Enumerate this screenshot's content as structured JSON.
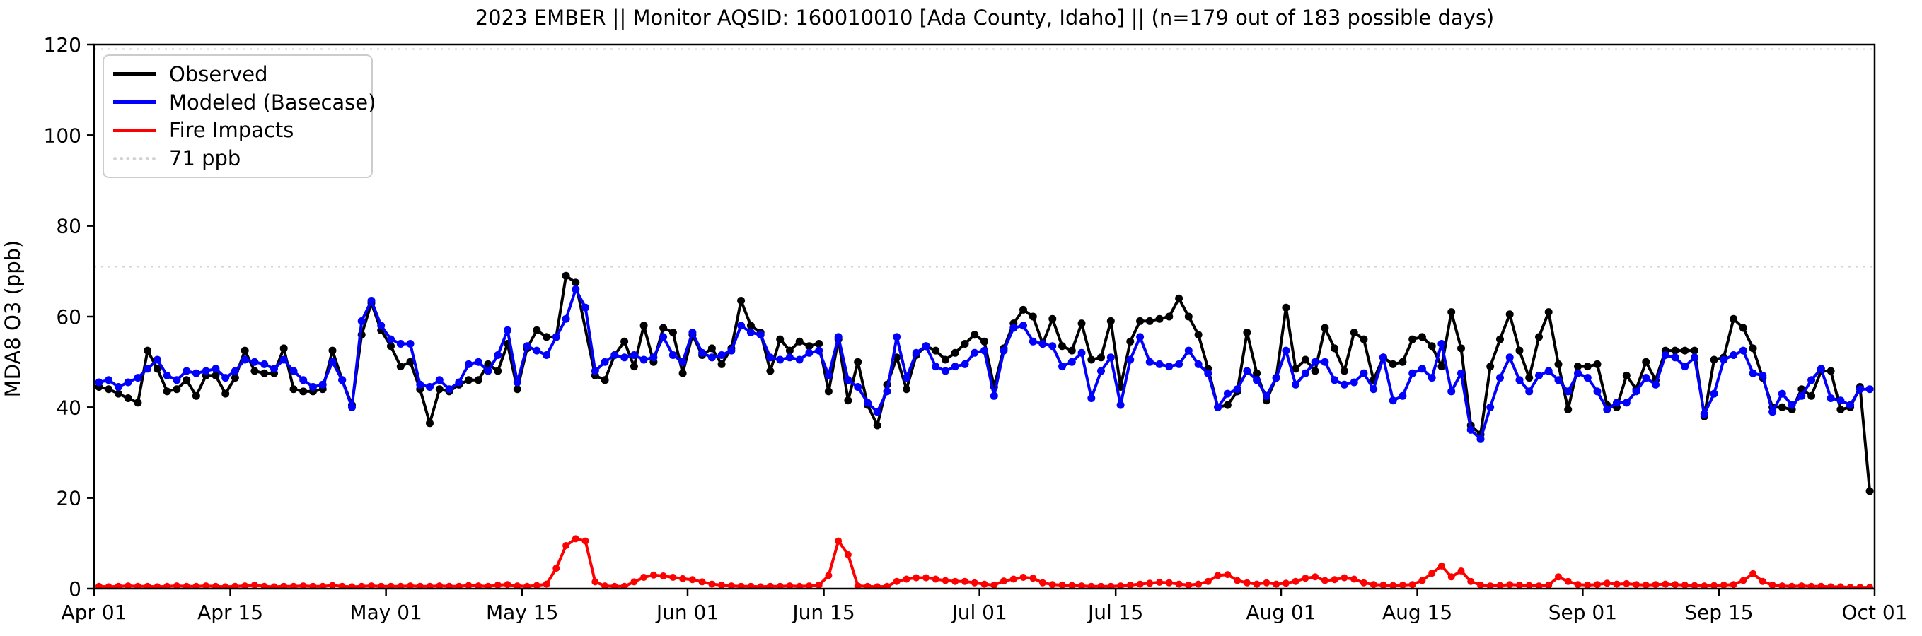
{
  "figure": {
    "title": "2023 EMBER || Monitor AQSID: 160010010 [Ada County, Idaho] || (n=179 out of 183 possible days)",
    "ylabel": "MDA8 O3 (ppb)"
  },
  "colors": {
    "observed": "#000000",
    "modeled": "#0000ff",
    "fire": "#ff0000",
    "reference": "#d3d3d3",
    "spine": "#000000",
    "background": "#ffffff"
  },
  "legend": {
    "items": [
      {
        "label": "Observed",
        "color": "#000000",
        "style": "solid"
      },
      {
        "label": "Modeled (Basecase)",
        "color": "#0000ff",
        "style": "solid"
      },
      {
        "label": "Fire Impacts",
        "color": "#ff0000",
        "style": "solid"
      },
      {
        "label": "71 ppb",
        "color": "#d3d3d3",
        "style": "dotted"
      }
    ],
    "position": "upper left"
  },
  "chart_data": {
    "type": "line",
    "title": "2023 EMBER || Monitor AQSID: 160010010 [Ada County, Idaho] || (n=179 out of 183 possible days)",
    "xlabel": "",
    "ylabel": "MDA8 O3 (ppb)",
    "ylim": [
      0,
      120
    ],
    "yticks": [
      0,
      20,
      40,
      60,
      80,
      100,
      120
    ],
    "x_start": "Apr 01",
    "x_end": "Oct 01",
    "n_days": 183,
    "xtick_labels": [
      "Apr 01",
      "Apr 15",
      "May 01",
      "May 15",
      "Jun 01",
      "Jun 15",
      "Jul 01",
      "Jul 15",
      "Aug 01",
      "Aug 15",
      "Sep 01",
      "Sep 15",
      "Oct 01"
    ],
    "xtick_day_index": [
      0,
      14,
      30,
      44,
      61,
      75,
      91,
      105,
      122,
      136,
      153,
      167,
      183
    ],
    "grid": false,
    "legend_position": "upper left",
    "reference_lines": [
      {
        "label": "71 ppb",
        "value": 71,
        "color": "#d3d3d3",
        "style": "dotted"
      },
      {
        "label": "",
        "value": 119,
        "color": "#d3d3d3",
        "style": "dotted"
      }
    ],
    "series": [
      {
        "name": "Observed",
        "color": "#000000",
        "marker": "circle",
        "values": [
          44.5,
          44,
          43,
          42,
          41,
          52.5,
          48.5,
          43.5,
          44,
          46,
          42.5,
          47,
          47,
          43,
          46.5,
          52.5,
          48,
          47.5,
          47.5,
          53,
          44,
          43.5,
          43.5,
          44,
          52.5,
          46,
          40.5,
          56,
          63,
          57,
          53.5,
          49,
          50,
          44,
          36.5,
          44,
          43.5,
          45,
          46,
          46,
          49.5,
          48,
          54,
          44,
          53,
          57,
          55.5,
          55.5,
          69,
          67.5,
          null,
          47,
          46,
          51.5,
          54.5,
          49,
          58,
          50,
          57.5,
          56.5,
          47.5,
          56,
          51.5,
          53,
          49.5,
          53,
          63.5,
          58,
          56.5,
          48,
          55,
          52.5,
          54.5,
          53.5,
          54,
          43.5,
          55,
          41.5,
          50,
          40.5,
          36,
          45,
          51,
          44,
          51.5,
          53.5,
          52.5,
          50.5,
          52,
          54,
          56,
          54.5,
          44.5,
          53,
          58.5,
          61.5,
          60,
          54,
          59.5,
          53.5,
          52.5,
          58.5,
          50.5,
          51,
          59,
          44.5,
          54.5,
          59,
          59,
          59.5,
          60,
          64,
          60,
          56,
          48.5,
          40,
          40.5,
          43.5,
          56.5,
          47.5,
          41.5,
          46.5,
          62,
          48.5,
          50.5,
          48,
          57.5,
          53,
          48,
          56.5,
          55,
          46,
          51,
          49.5,
          50,
          55,
          55.5,
          53.5,
          49,
          61,
          53,
          36,
          34,
          49,
          55,
          60.5,
          52.5,
          46.5,
          55.5,
          61,
          49.5,
          39.5,
          49,
          49,
          49.5,
          40.5,
          40,
          47,
          44,
          50,
          46,
          52.5,
          52.5,
          52.5,
          52.5,
          38,
          50.5,
          51,
          59.5,
          57.5,
          53,
          46.5,
          40,
          40,
          39.5,
          44,
          42.5,
          48,
          48,
          39.5,
          40,
          44.5,
          21.5
        ]
      },
      {
        "name": "Modeled (Basecase)",
        "color": "#0000ff",
        "marker": "circle",
        "values": [
          45.5,
          46,
          44.5,
          45.5,
          46.5,
          48.5,
          50.5,
          47,
          46,
          48,
          47.5,
          48,
          48.5,
          46.5,
          48,
          50.5,
          50,
          49.5,
          48.5,
          50.5,
          48,
          46,
          44.5,
          45,
          50,
          46,
          40,
          59,
          63.5,
          58,
          55,
          54,
          54,
          45,
          44.5,
          46,
          44,
          45.5,
          49.5,
          50,
          48,
          51.5,
          57,
          45.5,
          53.5,
          52.5,
          51.5,
          55.5,
          59.5,
          66,
          62,
          48,
          50,
          51.5,
          51,
          51.5,
          50.5,
          51,
          55.5,
          51.5,
          50,
          56.5,
          52,
          51,
          51.5,
          52.5,
          58,
          56.5,
          56,
          51,
          50.5,
          51,
          50.5,
          52,
          52.5,
          47,
          55.5,
          46,
          44.5,
          41,
          39,
          43.5,
          55.5,
          46.5,
          52,
          53.5,
          49,
          48,
          49,
          49.5,
          52,
          52.5,
          42.5,
          52.5,
          57.5,
          58,
          54.5,
          54,
          53.5,
          49,
          50,
          52,
          42,
          48,
          51,
          40.5,
          50.5,
          55.5,
          50,
          49.5,
          49,
          49.5,
          52.5,
          49.5,
          47.5,
          40,
          43,
          44,
          48,
          46,
          42.5,
          46.5,
          52.5,
          45,
          47.5,
          50,
          50,
          46,
          45,
          45.5,
          47.5,
          44,
          51,
          41.5,
          42.5,
          47.5,
          48.5,
          46.5,
          54,
          43.5,
          47.5,
          35,
          33,
          40,
          46.5,
          51,
          46,
          43.5,
          47,
          48,
          46,
          43.5,
          47.5,
          46.5,
          43.5,
          39.5,
          41,
          41,
          43.5,
          46.5,
          45,
          51.5,
          51,
          49,
          51,
          38.5,
          43,
          50.5,
          51.5,
          52.5,
          47.5,
          47,
          39,
          43,
          40.5,
          42.5,
          46,
          48.5,
          42,
          41.5,
          40.5,
          44,
          44
        ]
      },
      {
        "name": "Fire Impacts",
        "color": "#ff0000",
        "marker": "circle",
        "values": [
          0.5,
          0.4,
          0.5,
          0.6,
          0.5,
          0.5,
          0.4,
          0.5,
          0.6,
          0.5,
          0.5,
          0.6,
          0.5,
          0.4,
          0.5,
          0.6,
          0.8,
          0.5,
          0.4,
          0.5,
          0.5,
          0.6,
          0.5,
          0.5,
          0.7,
          0.5,
          0.4,
          0.5,
          0.6,
          0.5,
          0.5,
          0.5,
          0.6,
          0.5,
          0.5,
          0.6,
          0.5,
          0.5,
          0.7,
          0.6,
          0.5,
          0.8,
          0.9,
          0.6,
          0.5,
          0.7,
          1,
          4.5,
          9.5,
          11,
          10.5,
          1.5,
          0.6,
          0.5,
          0.5,
          1.5,
          2.5,
          3,
          2.8,
          2.5,
          2.2,
          2,
          1.5,
          1,
          0.8,
          0.6,
          0.5,
          0.5,
          0.4,
          0.5,
          0.5,
          0.6,
          0.5,
          0.6,
          0.8,
          2.9,
          10.5,
          7.5,
          0.6,
          0.5,
          0.4,
          0.5,
          1.6,
          2.1,
          2.4,
          2.4,
          2.1,
          1.8,
          1.6,
          1.6,
          1.3,
          1,
          0.8,
          1.7,
          2.1,
          2.5,
          2.3,
          1.3,
          0.9,
          0.8,
          0.7,
          0.6,
          0.5,
          0.5,
          0.5,
          0.6,
          0.8,
          1,
          1.2,
          1.4,
          1.3,
          1,
          0.8,
          1,
          1.6,
          2.9,
          3.1,
          1.8,
          1.3,
          1,
          1.3,
          1,
          1.2,
          1.6,
          2.3,
          2.6,
          1.8,
          2,
          2.4,
          2.1,
          1.3,
          0.9,
          0.8,
          0.7,
          0.8,
          0.9,
          1.8,
          3.4,
          5,
          2.6,
          3.9,
          1.6,
          0.8,
          0.6,
          0.7,
          0.9,
          0.8,
          0.7,
          0.6,
          0.8,
          2.6,
          1.6,
          0.9,
          0.8,
          0.9,
          1.2,
          1,
          1.1,
          0.9,
          0.8,
          0.9,
          1,
          0.9,
          0.8,
          0.7,
          0.6,
          0.7,
          0.8,
          0.9,
          1.8,
          3.3,
          1.6,
          0.8,
          0.6,
          0.5,
          0.6,
          0.5,
          0.5,
          0.4,
          0.4,
          0.3,
          0.3,
          0.3
        ]
      }
    ]
  }
}
